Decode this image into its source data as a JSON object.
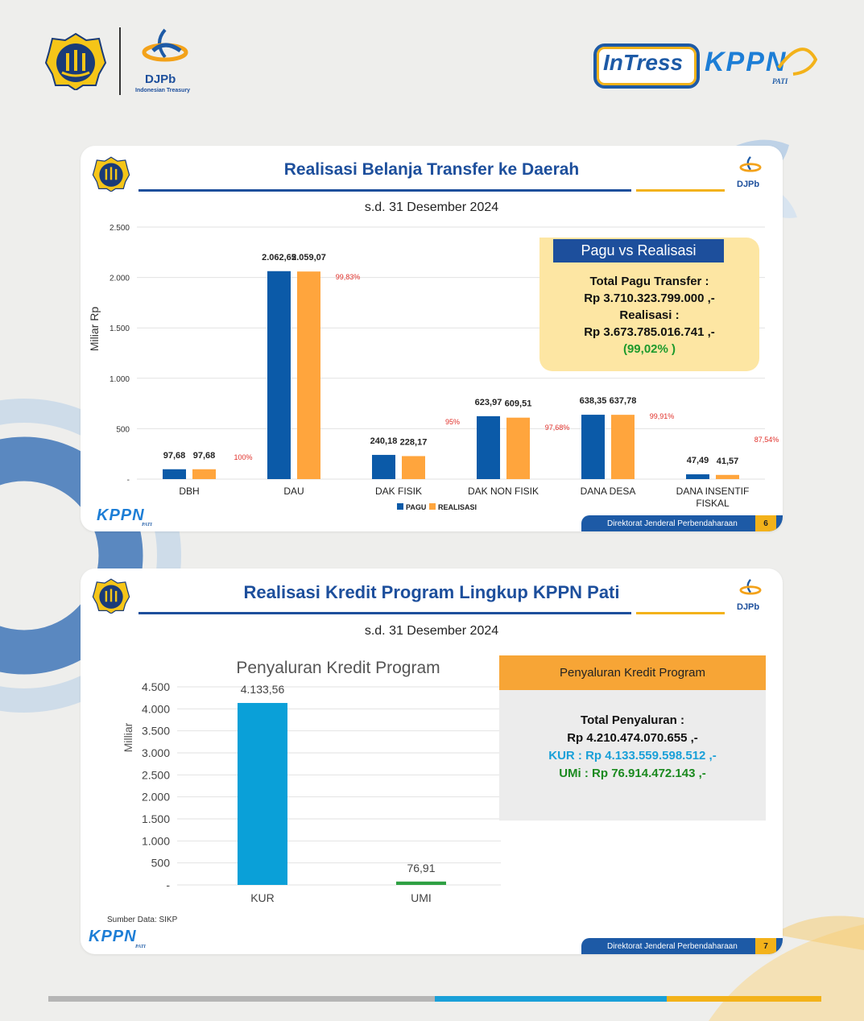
{
  "header": {
    "djpb_label": "DJPb",
    "djpb_sub": "Indonesian Treasury",
    "intress_label": "InTress",
    "kppn_label": "KPPN",
    "kppn_sub": "PATI"
  },
  "slide1": {
    "title": "Realisasi Belanja Transfer ke Daerah",
    "subtitle": "s.d. 31 Desember 2024",
    "logo_label": "DJPb",
    "info_header": "Pagu vs Realisasi",
    "info_line1": "Total Pagu Transfer :",
    "info_line2": "Rp 3.710.323.799.000 ,-",
    "info_line3": "Realisasi :",
    "info_line4": "Rp  3.673.785.016.741 ,-",
    "info_line5": "(99,02% )",
    "footer_text": "Direktorat Jenderal Perbendaharaan",
    "page_number": "6",
    "kppn_label": "KPPN",
    "kppn_sub": "PATI"
  },
  "slide2": {
    "title": "Realisasi Kredit Program Lingkup KPPN Pati",
    "subtitle": "s.d. 31 Desember 2024",
    "logo_label": "DJPb",
    "info_header": "Penyaluran Kredit Program",
    "info_line1": "Total Penyaluran :",
    "info_line2": "Rp 4.210.474.070.655 ,-",
    "info_line3": "KUR : Rp 4.133.559.598.512   ,-",
    "info_line4": "UMi : Rp 76.914.472.143  ,-",
    "source": "Sumber Data: SIKP",
    "footer_text": "Direktorat Jenderal Perbendaharaan",
    "page_number": "7",
    "kppn_label": "KPPN",
    "kppn_sub": "PATI"
  },
  "colors": {
    "pagu": "#0b5aa8",
    "realisasi": "#ffa53d",
    "kur": "#0aa0d8",
    "umi": "#2ea043",
    "title_blue": "#1d4f9c",
    "gold": "#f3b21a",
    "percent_red": "#e0302a"
  },
  "chart_data": [
    {
      "type": "bar",
      "title": "",
      "ylabel": "Miliar Rp",
      "xlabel": "",
      "ylim": [
        0,
        2500
      ],
      "yticks": [
        0,
        500,
        1000,
        1500,
        2000,
        2500
      ],
      "ytick_labels": [
        "-",
        "500",
        "1.000",
        "1.500",
        "2.000",
        "2.500"
      ],
      "categories": [
        "DBH",
        "DAU",
        "DAK FISIK",
        "DAK NON FISIK",
        "DANA DESA",
        "DANA INSENTIF FISKAL"
      ],
      "series": [
        {
          "name": "PAGU",
          "values": [
            97.68,
            2062.65,
            240.18,
            623.97,
            638.35,
            47.49
          ],
          "labels": [
            "97,68",
            "2.062,65",
            "240,18",
            "623,97",
            "638,35",
            "47,49"
          ]
        },
        {
          "name": "REALISASI",
          "values": [
            97.68,
            2059.07,
            228.17,
            609.51,
            637.78,
            41.57
          ],
          "labels": [
            "97,68",
            "2.059,07",
            "228,17",
            "609,51",
            "637,78",
            "41,57"
          ]
        }
      ],
      "percent_labels": [
        "100%",
        "99,83%",
        "95%",
        "97,68%",
        "99,91%",
        "87,54%"
      ],
      "legend": "bottom",
      "grid": true
    },
    {
      "type": "bar",
      "title": "Penyaluran Kredit Program",
      "ylabel": "Milliar",
      "xlabel": "",
      "ylim": [
        0,
        4500
      ],
      "yticks": [
        0,
        500,
        1000,
        1500,
        2000,
        2500,
        3000,
        3500,
        4000,
        4500
      ],
      "ytick_labels": [
        "-",
        "500",
        "1.000",
        "1.500",
        "2.000",
        "2.500",
        "3.000",
        "3.500",
        "4.000",
        "4.500"
      ],
      "categories": [
        "KUR",
        "UMI"
      ],
      "values": [
        4133.56,
        76.91
      ],
      "value_labels": [
        "4.133,56",
        "76,91"
      ],
      "legend": "none",
      "grid": true
    }
  ]
}
